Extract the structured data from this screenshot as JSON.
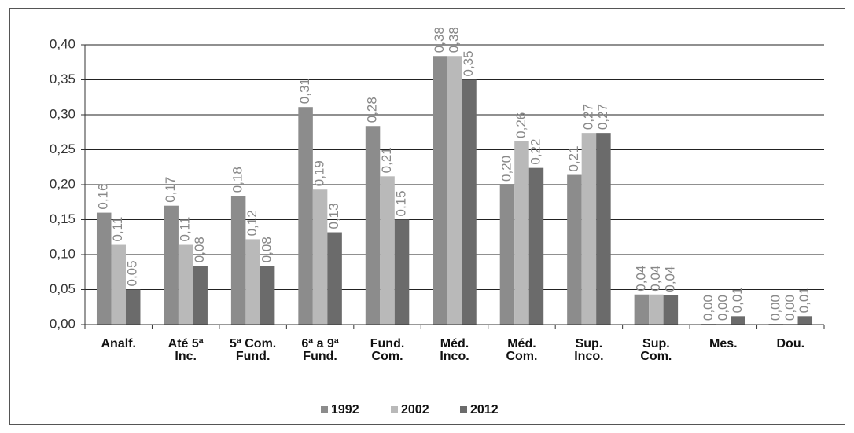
{
  "chart_data": {
    "type": "bar",
    "categories": [
      "Analf.",
      "Até 5ª\nInc.",
      "5ª Com.\nFund.",
      "6ª a 9ª\nFund.",
      "Fund.\nCom.",
      "Méd.\nInco.",
      "Méd.\nCom.",
      "Sup.\nInco.",
      "Sup.\nCom.",
      "Mes.",
      "Dou."
    ],
    "series": [
      {
        "name": "1992",
        "color": "#8c8c8c",
        "values": [
          0.16,
          0.17,
          0.184,
          0.311,
          0.284,
          0.384,
          0.2,
          0.214,
          0.043,
          0.001,
          0.001
        ],
        "value_labels": [
          "0,16",
          "0,17",
          "0,18",
          "0,31",
          "0,28",
          "0,38",
          "0,20",
          "0,21",
          "0,04",
          "0,00",
          "0,00"
        ]
      },
      {
        "name": "2002",
        "color": "#b9b9b9",
        "values": [
          0.114,
          0.114,
          0.122,
          0.193,
          0.212,
          0.384,
          0.262,
          0.274,
          0.043,
          0.001,
          0.001
        ],
        "value_labels": [
          "0,11",
          "0,11",
          "0,12",
          "0,19",
          "0,21",
          "0,38",
          "0,26",
          "0,27",
          "0,04",
          "0,00",
          "0,00"
        ]
      },
      {
        "name": "2012",
        "color": "#6b6b6b",
        "values": [
          0.05,
          0.084,
          0.084,
          0.132,
          0.15,
          0.35,
          0.224,
          0.274,
          0.042,
          0.012,
          0.012
        ],
        "value_labels": [
          "0,05",
          "0,08",
          "0,08",
          "0,13",
          "0,15",
          "0,35",
          "0,22",
          "0,27",
          "0,04",
          "0,01",
          "0,01"
        ]
      }
    ],
    "ylim": [
      0,
      0.4
    ],
    "yticks": [
      {
        "value": 0,
        "label": "0,00"
      },
      {
        "value": 0.05,
        "label": "0,05"
      },
      {
        "value": 0.1,
        "label": "0,10"
      },
      {
        "value": 0.15,
        "label": "0,15"
      },
      {
        "value": 0.2,
        "label": "0,20"
      },
      {
        "value": 0.25,
        "label": "0,25"
      },
      {
        "value": 0.3,
        "label": "0,30"
      },
      {
        "value": 0.35,
        "label": "0,35"
      },
      {
        "value": 0.4,
        "label": "0,40"
      }
    ],
    "grid": true,
    "legend": "bottom"
  }
}
